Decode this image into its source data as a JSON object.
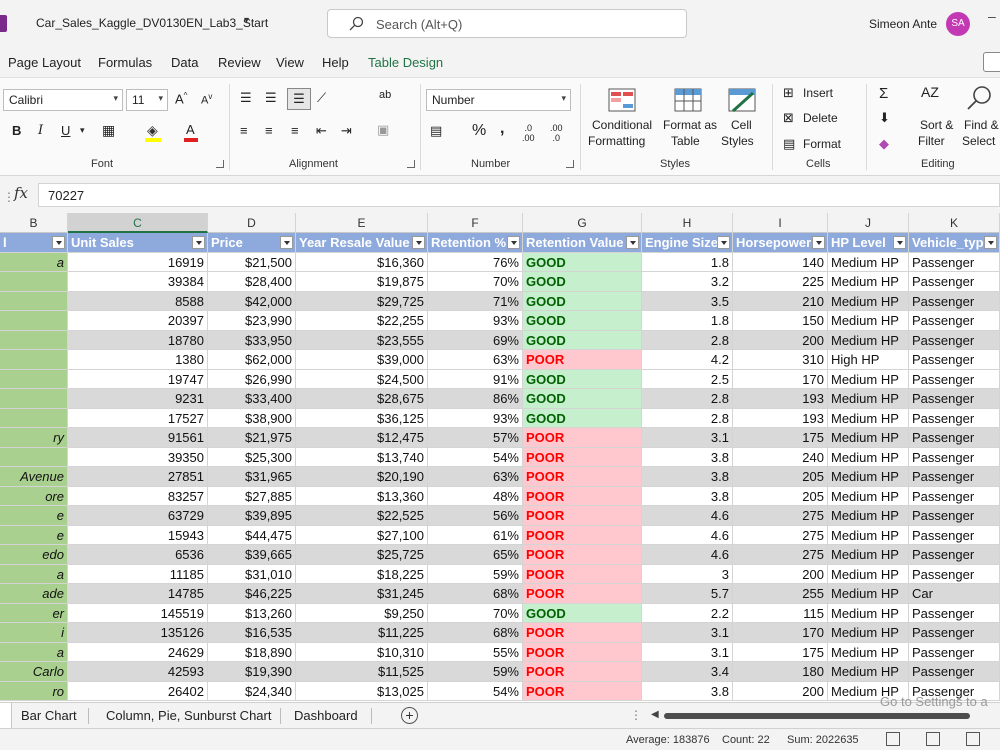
{
  "title_bar": {
    "doc_title": "Car_Sales_Kaggle_DV0130EN_Lab3_Start",
    "search_placeholder": "Search (Alt+Q)",
    "user_name": "Simeon Ante",
    "user_initials": "SA"
  },
  "tabs": [
    "Page Layout",
    "Formulas",
    "Data",
    "Review",
    "View",
    "Help",
    "Table Design"
  ],
  "ribbon": {
    "font": {
      "name": "Calibri",
      "size": "11",
      "group_label": "Font"
    },
    "alignment": {
      "group_label": "Alignment"
    },
    "number": {
      "format": "Number",
      "group_label": "Number"
    },
    "styles": {
      "group_label": "Styles",
      "conditional_formatting": [
        "Conditional",
        "Formatting"
      ],
      "format_as_table": [
        "Format as",
        "Table"
      ],
      "cell_styles": [
        "Cell",
        "Styles"
      ]
    },
    "cells": {
      "group_label": "Cells",
      "insert": "Insert",
      "delete": "Delete",
      "format": "Format"
    },
    "editing": {
      "group_label": "Editing",
      "sort_filter": [
        "Sort &",
        "Filter"
      ],
      "find_select": [
        "Find &",
        "Select"
      ]
    }
  },
  "formula_bar": {
    "fx": "fx",
    "value": "70227"
  },
  "columns": [
    {
      "letter": "B",
      "header": "l"
    },
    {
      "letter": "C",
      "header": "Unit Sales"
    },
    {
      "letter": "D",
      "header": "Price"
    },
    {
      "letter": "E",
      "header": "Year Resale Value"
    },
    {
      "letter": "F",
      "header": "Retention %"
    },
    {
      "letter": "G",
      "header": "Retention Value"
    },
    {
      "letter": "H",
      "header": "Engine Size"
    },
    {
      "letter": "I",
      "header": "Horsepower"
    },
    {
      "letter": "J",
      "header": "HP Level"
    },
    {
      "letter": "K",
      "header": "Vehicle_type"
    }
  ],
  "rows": [
    [
      "a",
      "16919",
      "$21,500",
      "$16,360",
      "76%",
      "GOOD",
      "1.8",
      "140",
      "Medium HP",
      "Passenger"
    ],
    [
      "",
      "39384",
      "$28,400",
      "$19,875",
      "70%",
      "GOOD",
      "3.2",
      "225",
      "Medium HP",
      "Passenger"
    ],
    [
      "",
      "8588",
      "$42,000",
      "$29,725",
      "71%",
      "GOOD",
      "3.5",
      "210",
      "Medium HP",
      "Passenger"
    ],
    [
      "",
      "20397",
      "$23,990",
      "$22,255",
      "93%",
      "GOOD",
      "1.8",
      "150",
      "Medium HP",
      "Passenger"
    ],
    [
      "",
      "18780",
      "$33,950",
      "$23,555",
      "69%",
      "GOOD",
      "2.8",
      "200",
      "Medium HP",
      "Passenger"
    ],
    [
      "",
      "1380",
      "$62,000",
      "$39,000",
      "63%",
      "POOR",
      "4.2",
      "310",
      "High HP",
      "Passenger"
    ],
    [
      "",
      "19747",
      "$26,990",
      "$24,500",
      "91%",
      "GOOD",
      "2.5",
      "170",
      "Medium HP",
      "Passenger"
    ],
    [
      "",
      "9231",
      "$33,400",
      "$28,675",
      "86%",
      "GOOD",
      "2.8",
      "193",
      "Medium HP",
      "Passenger"
    ],
    [
      "",
      "17527",
      "$38,900",
      "$36,125",
      "93%",
      "GOOD",
      "2.8",
      "193",
      "Medium HP",
      "Passenger"
    ],
    [
      "ry",
      "91561",
      "$21,975",
      "$12,475",
      "57%",
      "POOR",
      "3.1",
      "175",
      "Medium HP",
      "Passenger"
    ],
    [
      "",
      "39350",
      "$25,300",
      "$13,740",
      "54%",
      "POOR",
      "3.8",
      "240",
      "Medium HP",
      "Passenger"
    ],
    [
      "Avenue",
      "27851",
      "$31,965",
      "$20,190",
      "63%",
      "POOR",
      "3.8",
      "205",
      "Medium HP",
      "Passenger"
    ],
    [
      "ore",
      "83257",
      "$27,885",
      "$13,360",
      "48%",
      "POOR",
      "3.8",
      "205",
      "Medium HP",
      "Passenger"
    ],
    [
      "e",
      "63729",
      "$39,895",
      "$22,525",
      "56%",
      "POOR",
      "4.6",
      "275",
      "Medium HP",
      "Passenger"
    ],
    [
      "e",
      "15943",
      "$44,475",
      "$27,100",
      "61%",
      "POOR",
      "4.6",
      "275",
      "Medium HP",
      "Passenger"
    ],
    [
      "edo",
      "6536",
      "$39,665",
      "$25,725",
      "65%",
      "POOR",
      "4.6",
      "275",
      "Medium HP",
      "Passenger"
    ],
    [
      "a",
      "11185",
      "$31,010",
      "$18,225",
      "59%",
      "POOR",
      "3",
      "200",
      "Medium HP",
      "Passenger"
    ],
    [
      "ade",
      "14785",
      "$46,225",
      "$31,245",
      "68%",
      "POOR",
      "5.7",
      "255",
      "Medium HP",
      "Car"
    ],
    [
      "er",
      "145519",
      "$13,260",
      "$9,250",
      "70%",
      "GOOD",
      "2.2",
      "115",
      "Medium HP",
      "Passenger"
    ],
    [
      "i",
      "135126",
      "$16,535",
      "$11,225",
      "68%",
      "POOR",
      "3.1",
      "170",
      "Medium HP",
      "Passenger"
    ],
    [
      "a",
      "24629",
      "$18,890",
      "$10,310",
      "55%",
      "POOR",
      "3.1",
      "175",
      "Medium HP",
      "Passenger"
    ],
    [
      "Carlo",
      "42593",
      "$19,390",
      "$11,525",
      "59%",
      "POOR",
      "3.4",
      "180",
      "Medium HP",
      "Passenger"
    ],
    [
      "ro",
      "26402",
      "$24,340",
      "$13,025",
      "54%",
      "POOR",
      "3.8",
      "200",
      "Medium HP",
      "Passenger"
    ]
  ],
  "sheets": [
    "Bar Chart",
    "Column, Pie, Sunburst Chart",
    "Dashboard"
  ],
  "activation_text": "Go to Settings to a",
  "status": {
    "average": "Average: 183876",
    "count": "Count: 22",
    "sum": "Sum: 2022635"
  },
  "colors": {
    "header_blue": "#8ea9db",
    "good_fill": "#c6efce",
    "poor_fill": "#ffc7ce",
    "design_green": "#217346"
  }
}
